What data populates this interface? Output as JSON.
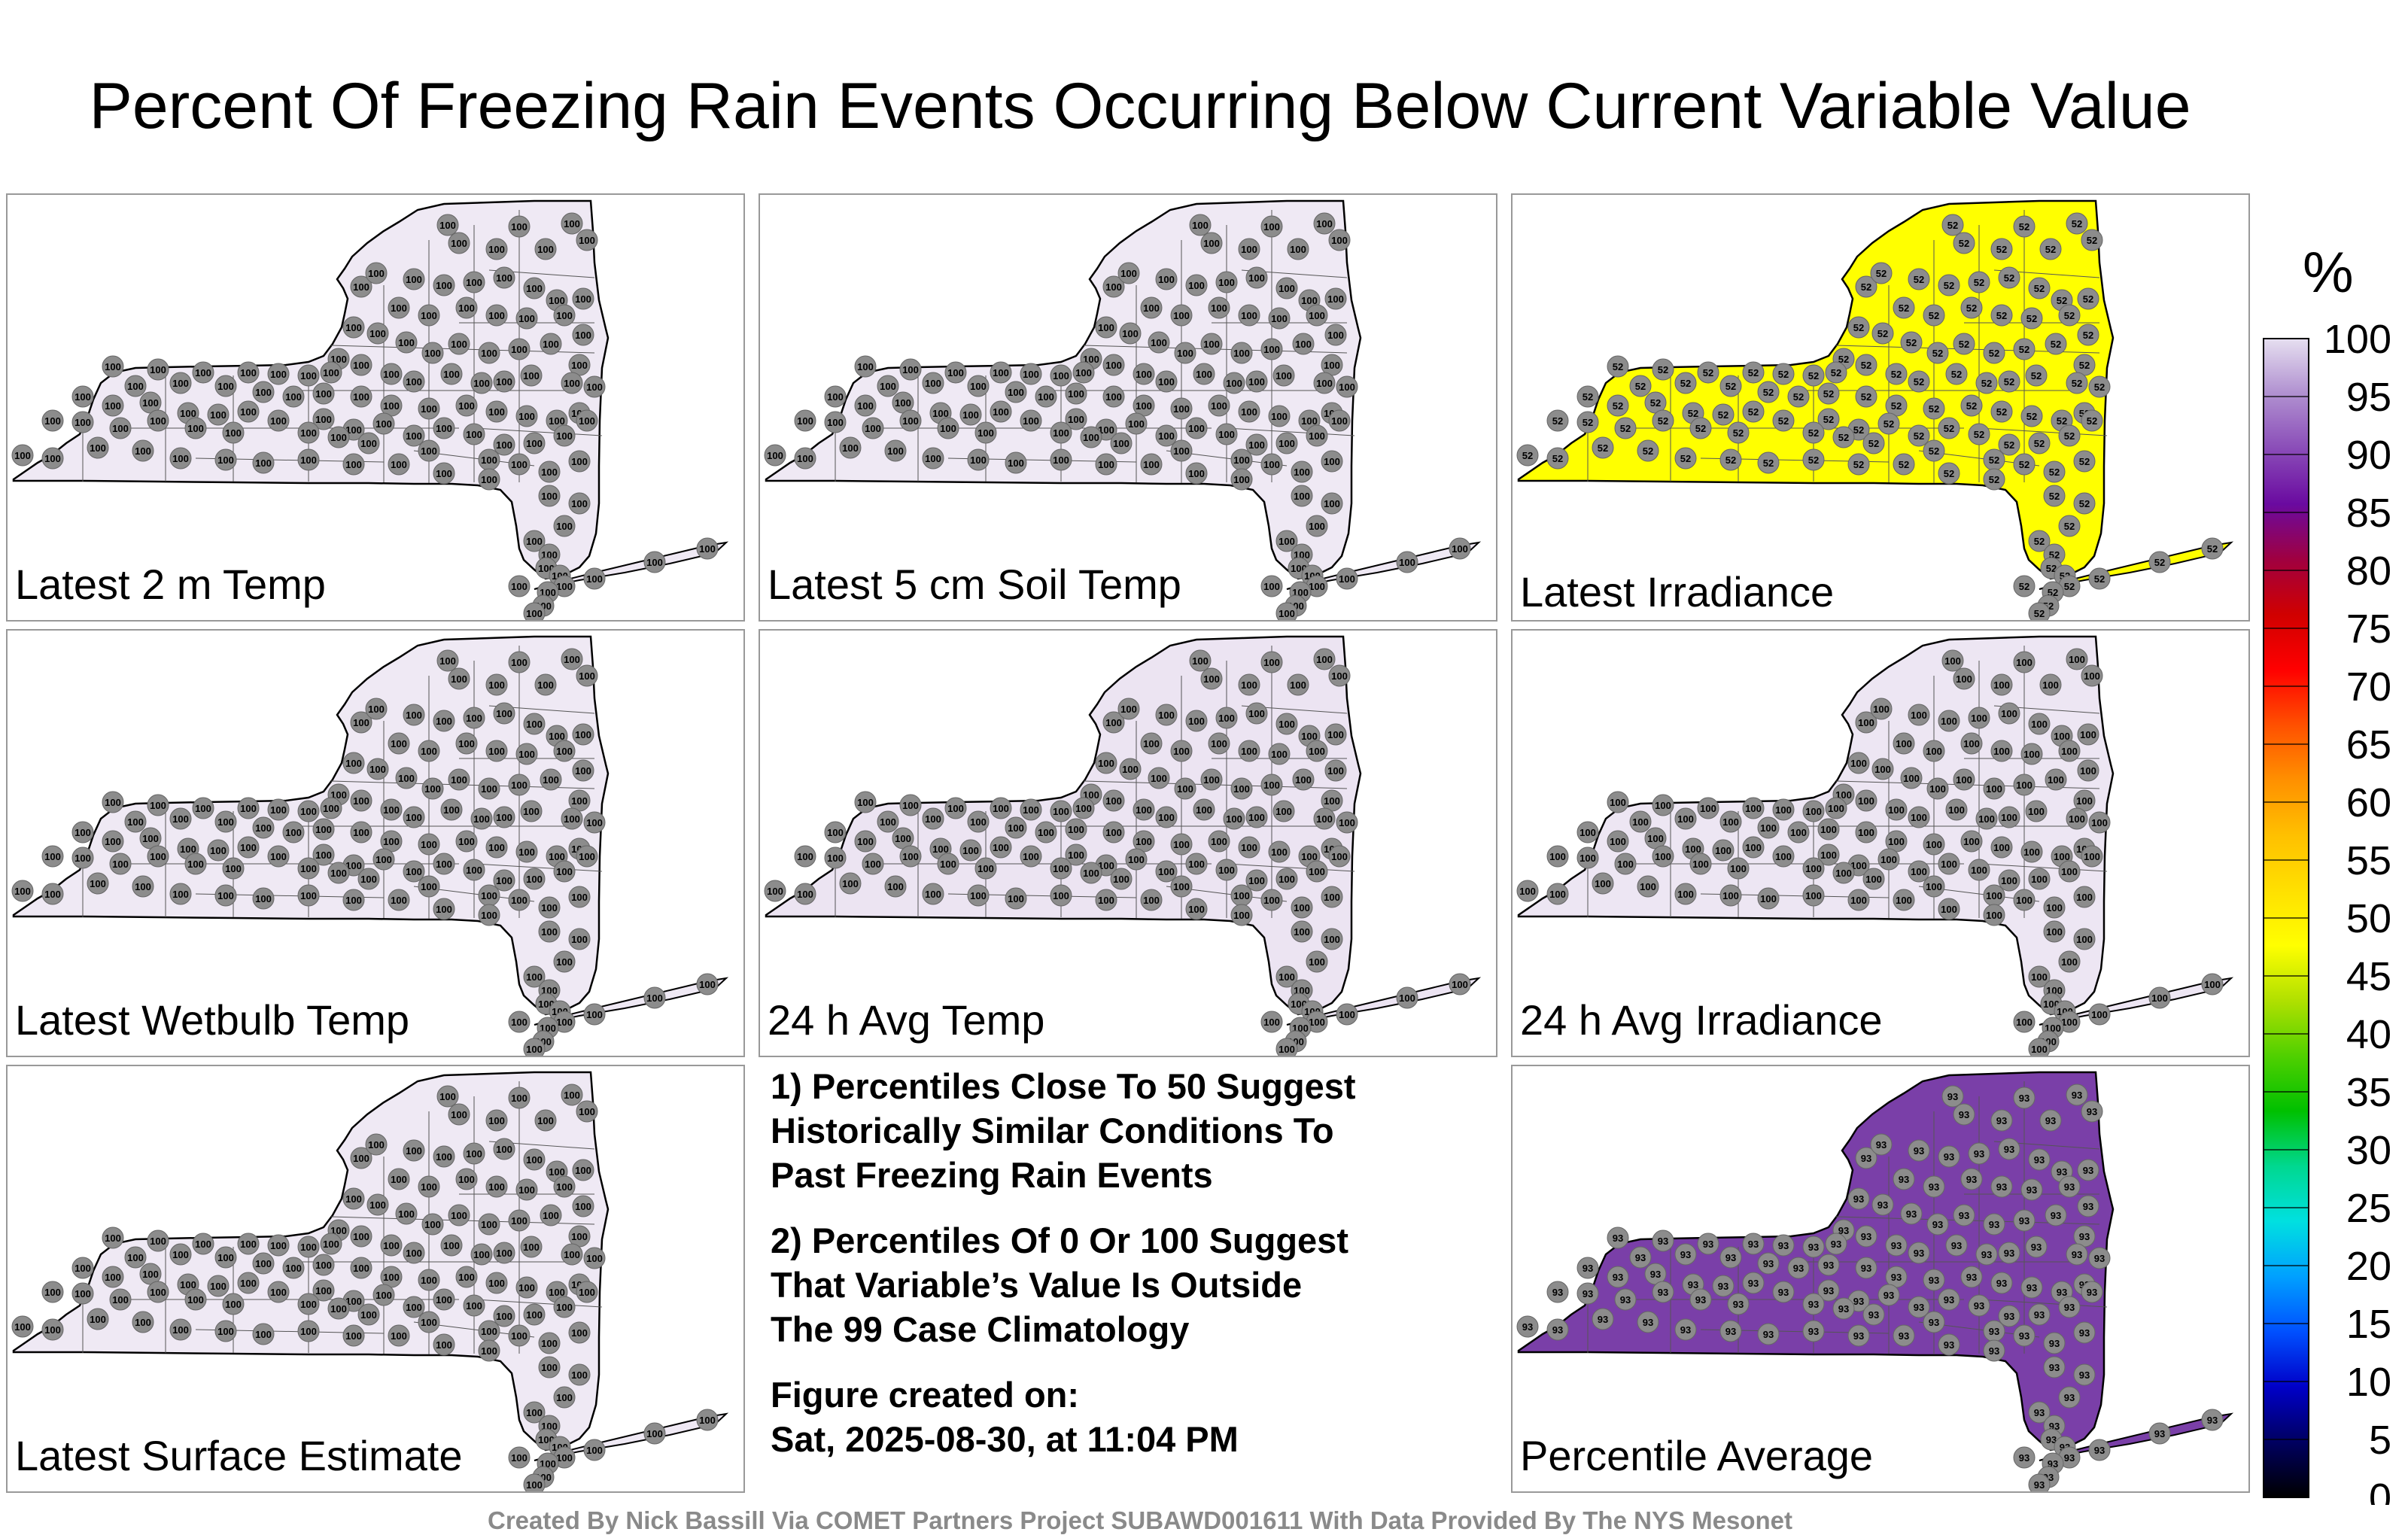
{
  "title": "Percent Of Freezing Rain Events Occurring Below Current Variable Value",
  "panels": [
    {
      "label": "Latest 2 m Temp",
      "fill": "#efe9f4",
      "value_text": "100"
    },
    {
      "label": "Latest 5 cm Soil Temp",
      "fill": "#efe9f4",
      "value_text": "100"
    },
    {
      "label": "Latest Irradiance",
      "fill": "#ffff00",
      "value_text": "52"
    },
    {
      "label": "Latest Wetbulb Temp",
      "fill": "#efe9f4",
      "value_text": "100"
    },
    {
      "label": "24 h Avg Temp",
      "fill": "#ece4f2",
      "value_text": "100"
    },
    {
      "label": "24 h Avg Irradiance",
      "fill": "#ede6f3",
      "value_text": "100"
    },
    {
      "label": "Latest Surface Estimate",
      "fill": "#efe9f4",
      "value_text": "100"
    },
    {
      "label": "Percentile Average",
      "fill": "#7a3fa8",
      "value_text": "93"
    }
  ],
  "notes": {
    "note1": [
      "1) Percentiles Close To 50 Suggest",
      "Historically Similar Conditions To",
      "Past Freezing Rain Events"
    ],
    "note2": [
      "2) Percentiles Of 0 Or 100 Suggest",
      "That Variable’s Value Is Outside",
      "The 99 Case Climatology"
    ],
    "created": [
      "Figure created on:",
      "Sat, 2025-08-30, at 11:04 PM"
    ]
  },
  "colorbar": {
    "unit": "%",
    "ticks": [
      "0",
      "5",
      "10",
      "15",
      "20",
      "25",
      "30",
      "35",
      "40",
      "45",
      "50",
      "55",
      "60",
      "65",
      "70",
      "75",
      "80",
      "85",
      "90",
      "95",
      "100"
    ],
    "colors": [
      "#000000",
      "#000060",
      "#0000c8",
      "#0050ff",
      "#00a0ff",
      "#00e0e0",
      "#00d890",
      "#00c000",
      "#50d000",
      "#b0e000",
      "#ffff00",
      "#ffe000",
      "#ffc000",
      "#ff9000",
      "#ff5000",
      "#ff0000",
      "#d00000",
      "#a00040",
      "#6a0aa0",
      "#8a4cb8",
      "#b090d0",
      "#e6dff0"
    ]
  },
  "credit": "Created By Nick Bassill Via COMET Partners Project SUBAWD001611 With Data Provided By The NYS Mesonet"
}
